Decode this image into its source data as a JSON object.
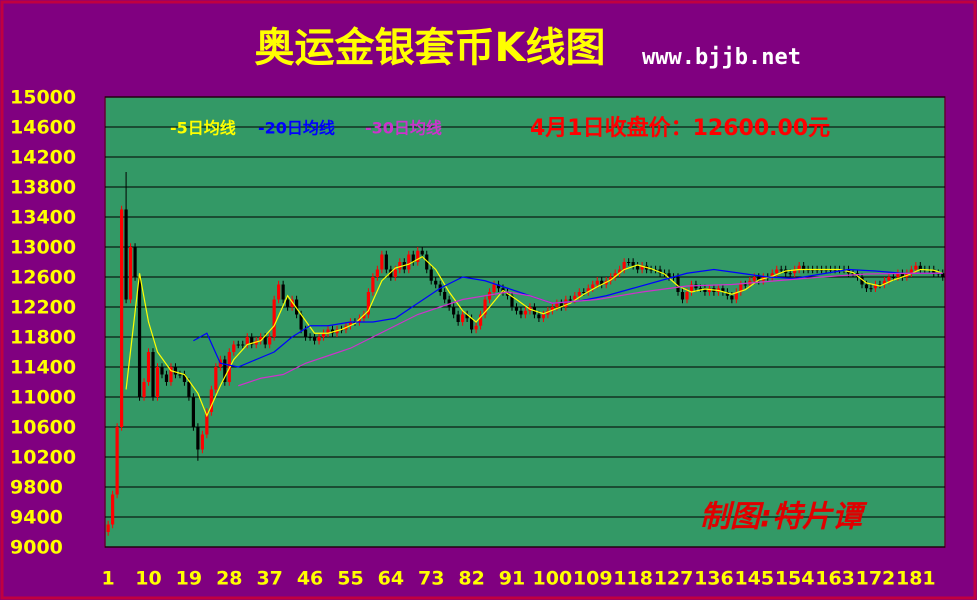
{
  "chart_data": {
    "type": "candlestick",
    "title": "奥运金银套币K线图",
    "subtitle": "www.bjjb.net",
    "annotation": "4月1日收盘价：12600.00元",
    "credit": "制图:特片谭",
    "up_color": "#ff0000",
    "down_color": "#000000",
    "x": [
      1,
      2,
      3,
      4,
      5,
      6,
      7,
      8,
      9,
      10,
      11,
      12,
      13,
      14,
      15,
      16,
      17,
      18,
      19,
      20,
      21,
      22,
      23,
      24,
      25,
      26,
      27,
      28,
      29,
      30,
      31,
      32,
      33,
      34,
      35,
      36,
      37,
      38,
      39,
      40,
      41,
      42,
      43,
      44,
      45,
      46,
      47,
      48,
      49,
      50,
      51,
      52,
      53,
      54,
      55,
      56,
      57,
      58,
      59,
      60,
      61,
      62,
      63,
      64,
      65,
      66,
      67,
      68,
      69,
      70,
      71,
      72,
      73,
      74,
      75,
      76,
      77,
      78,
      79,
      80,
      81,
      82,
      83,
      84,
      85,
      86,
      87,
      88,
      89,
      90,
      91,
      92,
      93,
      94,
      95,
      96,
      97,
      98,
      99,
      100,
      101,
      102,
      103,
      104,
      105,
      106,
      107,
      108,
      109,
      110,
      111,
      112,
      113,
      114,
      115,
      116,
      117,
      118,
      119,
      120,
      121,
      122,
      123,
      124,
      125,
      126,
      127,
      128,
      129,
      130,
      131,
      132,
      133,
      134,
      135,
      136,
      137,
      138,
      139,
      140,
      141,
      142,
      143,
      144,
      145,
      146,
      147,
      148,
      149,
      150,
      151,
      152,
      153,
      154,
      155,
      156,
      157,
      158,
      159,
      160,
      161,
      162,
      163,
      164,
      165,
      166,
      167,
      168,
      169,
      170,
      171,
      172,
      173,
      174,
      175,
      176,
      177,
      178,
      179,
      180,
      181,
      182,
      183,
      184,
      185,
      186,
      187
    ],
    "open": [
      9200,
      9300,
      9700,
      10600,
      13500,
      12300,
      13000,
      12600,
      11000,
      11200,
      11600,
      11000,
      11400,
      11300,
      11200,
      11400,
      11300,
      11300,
      11200,
      11000,
      10600,
      10300,
      10500,
      10800,
      11100,
      11400,
      11500,
      11200,
      11600,
      11700,
      11700,
      11700,
      11800,
      11700,
      11750,
      11800,
      11700,
      11800,
      12300,
      12500,
      12300,
      12200,
      12300,
      12100,
      11900,
      11800,
      11800,
      11750,
      11800,
      11850,
      11900,
      11850,
      11900,
      11900,
      11950,
      12000,
      12000,
      12050,
      12100,
      12400,
      12600,
      12700,
      12900,
      12700,
      12600,
      12700,
      12800,
      12700,
      12900,
      12800,
      12950,
      12900,
      12700,
      12550,
      12500,
      12400,
      12300,
      12200,
      12100,
      12000,
      12100,
      12050,
      11900,
      11950,
      12100,
      12300,
      12400,
      12500,
      12450,
      12400,
      12350,
      12200,
      12150,
      12100,
      12150,
      12200,
      12100,
      12050,
      12100,
      12150,
      12200,
      12250,
      12200,
      12300,
      12300,
      12350,
      12400,
      12400,
      12450,
      12500,
      12550,
      12500,
      12550,
      12600,
      12650,
      12700,
      12800,
      12800,
      12750,
      12700,
      12750,
      12700,
      12700,
      12700,
      12650,
      12650,
      12600,
      12600,
      12400,
      12300,
      12400,
      12500,
      12450,
      12450,
      12400,
      12450,
      12400,
      12450,
      12400,
      12350,
      12300,
      12400,
      12500,
      12500,
      12550,
      12600,
      12550,
      12600,
      12600,
      12650,
      12700,
      12700,
      12650,
      12650,
      12700,
      12750,
      12700,
      12700,
      12700,
      12700,
      12700,
      12700,
      12700,
      12700,
      12700,
      12700,
      12650,
      12650,
      12600,
      12500,
      12450,
      12450,
      12500,
      12500,
      12550,
      12600,
      12600,
      12650,
      12600,
      12650,
      12700,
      12750,
      12700,
      12700,
      12700,
      12650,
      12650
    ],
    "high": [
      9350,
      9750,
      10650,
      13550,
      14000,
      13050,
      13050,
      12650,
      11250,
      11650,
      11650,
      11450,
      11450,
      11350,
      11450,
      11450,
      11350,
      11350,
      11250,
      11050,
      10650,
      10550,
      10850,
      11150,
      11450,
      11550,
      11550,
      11650,
      11750,
      11750,
      11750,
      11850,
      11850,
      11800,
      11850,
      11850,
      11850,
      12350,
      12550,
      12550,
      12350,
      12350,
      12350,
      12150,
      11950,
      11850,
      11850,
      11850,
      11900,
      11950,
      11950,
      11950,
      11950,
      12000,
      12050,
      12050,
      12100,
      12150,
      12450,
      12650,
      12750,
      12950,
      12950,
      12750,
      12750,
      12850,
      12850,
      12950,
      12950,
      13000,
      13000,
      12950,
      12750,
      12600,
      12550,
      12450,
      12350,
      12250,
      12150,
      12150,
      12150,
      12100,
      12000,
      12150,
      12350,
      12450,
      12550,
      12550,
      12500,
      12450,
      12400,
      12250,
      12200,
      12200,
      12250,
      12250,
      12150,
      12150,
      12200,
      12250,
      12300,
      12300,
      12350,
      12350,
      12400,
      12450,
      12450,
      12500,
      12550,
      12600,
      12600,
      12600,
      12650,
      12700,
      12750,
      12850,
      12850,
      12850,
      12800,
      12800,
      12800,
      12750,
      12750,
      12750,
      12700,
      12700,
      12650,
      12650,
      12450,
      12450,
      12550,
      12550,
      12500,
      12500,
      12500,
      12500,
      12500,
      12500,
      12450,
      12400,
      12450,
      12550,
      12550,
      12600,
      12650,
      12650,
      12650,
      12650,
      12700,
      12750,
      12750,
      12750,
      12700,
      12750,
      12800,
      12800,
      12750,
      12750,
      12750,
      12750,
      12750,
      12750,
      12750,
      12750,
      12750,
      12750,
      12700,
      12700,
      12650,
      12550,
      12500,
      12550,
      12550,
      12600,
      12650,
      12650,
      12700,
      12700,
      12700,
      12750,
      12800,
      12800,
      12750,
      12750,
      12750,
      12700,
      12700
    ],
    "low": [
      9150,
      9250,
      9650,
      10550,
      12250,
      12250,
      12550,
      10950,
      10950,
      11150,
      10950,
      10950,
      11250,
      11150,
      11150,
      11250,
      11250,
      11150,
      10950,
      10550,
      10150,
      10250,
      10450,
      10750,
      11050,
      11350,
      11150,
      11150,
      11550,
      11650,
      11650,
      11650,
      11650,
      11650,
      11700,
      11650,
      11650,
      11750,
      12250,
      12250,
      12150,
      12150,
      12050,
      11850,
      11750,
      11750,
      11700,
      11700,
      11750,
      11800,
      11800,
      11800,
      11850,
      11850,
      11900,
      11950,
      11950,
      12000,
      12050,
      12350,
      12550,
      12650,
      12650,
      12550,
      12550,
      12650,
      12650,
      12650,
      12750,
      12750,
      12850,
      12650,
      12500,
      12450,
      12350,
      12250,
      12150,
      12050,
      11950,
      11950,
      12000,
      11850,
      11850,
      11900,
      12050,
      12250,
      12350,
      12400,
      12350,
      12300,
      12150,
      12100,
      12050,
      12050,
      12100,
      12050,
      12000,
      12000,
      12050,
      12100,
      12150,
      12150,
      12150,
      12250,
      12250,
      12300,
      12350,
      12350,
      12400,
      12450,
      12450,
      12450,
      12500,
      12550,
      12600,
      12650,
      12750,
      12700,
      12650,
      12650,
      12650,
      12650,
      12650,
      12600,
      12600,
      12550,
      12550,
      12350,
      12250,
      12250,
      12350,
      12400,
      12400,
      12350,
      12350,
      12350,
      12350,
      12350,
      12300,
      12250,
      12250,
      12350,
      12450,
      12450,
      12500,
      12500,
      12500,
      12550,
      12550,
      12600,
      12650,
      12600,
      12600,
      12600,
      12650,
      12650,
      12650,
      12650,
      12650,
      12650,
      12650,
      12650,
      12650,
      12650,
      12650,
      12600,
      12600,
      12550,
      12450,
      12400,
      12400,
      12400,
      12450,
      12450,
      12500,
      12550,
      12550,
      12550,
      12550,
      12600,
      12650,
      12650,
      12650,
      12650,
      12600,
      12600,
      12550
    ],
    "close": [
      9300,
      9700,
      10600,
      13500,
      12300,
      13000,
      12600,
      11000,
      11200,
      11600,
      11000,
      11400,
      11300,
      11200,
      11400,
      11300,
      11300,
      11200,
      11000,
      10600,
      10300,
      10500,
      10800,
      11100,
      11400,
      11500,
      11200,
      11600,
      11700,
      11700,
      11700,
      11800,
      11700,
      11750,
      11800,
      11700,
      11800,
      12300,
      12500,
      12300,
      12200,
      12300,
      12100,
      11900,
      11800,
      11800,
      11750,
      11800,
      11850,
      11900,
      11850,
      11900,
      11900,
      11950,
      12000,
      12000,
      12050,
      12100,
      12400,
      12600,
      12700,
      12900,
      12700,
      12600,
      12700,
      12800,
      12700,
      12900,
      12800,
      12950,
      12900,
      12700,
      12550,
      12500,
      12400,
      12300,
      12200,
      12100,
      12000,
      12100,
      12050,
      11900,
      11950,
      12100,
      12300,
      12400,
      12500,
      12450,
      12400,
      12350,
      12200,
      12150,
      12100,
      12150,
      12200,
      12100,
      12050,
      12100,
      12150,
      12200,
      12250,
      12200,
      12300,
      12300,
      12350,
      12400,
      12400,
      12450,
      12500,
      12550,
      12500,
      12550,
      12600,
      12650,
      12700,
      12800,
      12800,
      12750,
      12700,
      12750,
      12700,
      12700,
      12700,
      12650,
      12650,
      12600,
      12600,
      12400,
      12300,
      12400,
      12500,
      12450,
      12450,
      12400,
      12450,
      12400,
      12450,
      12400,
      12350,
      12300,
      12400,
      12500,
      12500,
      12550,
      12600,
      12550,
      12600,
      12600,
      12650,
      12700,
      12700,
      12650,
      12650,
      12700,
      12750,
      12700,
      12700,
      12700,
      12700,
      12700,
      12700,
      12700,
      12700,
      12700,
      12700,
      12650,
      12650,
      12600,
      12500,
      12450,
      12450,
      12500,
      12500,
      12550,
      12600,
      12600,
      12650,
      12600,
      12650,
      12700,
      12750,
      12700,
      12700,
      12700,
      12650,
      12650,
      12600
    ],
    "series": [
      {
        "name": "-5日均线",
        "color": "#ffff00",
        "x": [
          5,
          8,
          10,
          12,
          15,
          18,
          21,
          23,
          26,
          29,
          32,
          35,
          38,
          41,
          44,
          47,
          50,
          53,
          56,
          59,
          62,
          65,
          68,
          71,
          74,
          77,
          80,
          83,
          86,
          89,
          92,
          95,
          98,
          101,
          104,
          107,
          110,
          113,
          116,
          119,
          122,
          125,
          128,
          131,
          134,
          137,
          140,
          143,
          146,
          149,
          152,
          155,
          158,
          161,
          164,
          167,
          170,
          173,
          176,
          179,
          182,
          185,
          187
        ],
        "values": [
          11100,
          12650,
          12000,
          11600,
          11350,
          11300,
          11050,
          10750,
          11150,
          11500,
          11700,
          11750,
          11950,
          12350,
          12100,
          11850,
          11850,
          11900,
          11980,
          12150,
          12550,
          12720,
          12770,
          12870,
          12700,
          12400,
          12150,
          12000,
          12200,
          12420,
          12300,
          12170,
          12110,
          12180,
          12250,
          12370,
          12470,
          12560,
          12700,
          12760,
          12710,
          12640,
          12480,
          12400,
          12440,
          12420,
          12370,
          12430,
          12560,
          12610,
          12680,
          12700,
          12700,
          12700,
          12700,
          12660,
          12520,
          12480,
          12560,
          12620,
          12700,
          12690,
          12650
        ]
      },
      {
        "name": "-20日均线",
        "color": "#0000ff",
        "x": [
          20,
          23,
          26,
          30,
          34,
          38,
          42,
          46,
          50,
          55,
          60,
          65,
          70,
          75,
          80,
          85,
          90,
          95,
          100,
          106,
          112,
          118,
          124,
          130,
          136,
          142,
          148,
          154,
          160,
          166,
          172,
          178,
          184,
          187
        ],
        "values": [
          11750,
          11850,
          11450,
          11400,
          11500,
          11600,
          11800,
          11950,
          11950,
          12000,
          12000,
          12050,
          12250,
          12450,
          12600,
          12550,
          12450,
          12350,
          12250,
          12280,
          12350,
          12450,
          12550,
          12650,
          12700,
          12650,
          12600,
          12580,
          12640,
          12700,
          12680,
          12650,
          12650,
          12650
        ]
      },
      {
        "name": "-30日均线",
        "color": "#cc33cc",
        "x": [
          30,
          35,
          40,
          45,
          50,
          55,
          60,
          65,
          70,
          75,
          80,
          85,
          90,
          95,
          100,
          110,
          120,
          130,
          140,
          150,
          160,
          170,
          180,
          187
        ],
        "values": [
          11150,
          11250,
          11300,
          11450,
          11550,
          11650,
          11800,
          11950,
          12100,
          12200,
          12300,
          12350,
          12400,
          12350,
          12250,
          12300,
          12400,
          12480,
          12500,
          12550,
          12600,
          12640,
          12650,
          12650
        ]
      }
    ],
    "xlim": [
      0.3,
      187.5
    ],
    "xticks": [
      1,
      10,
      19,
      28,
      37,
      46,
      55,
      64,
      73,
      82,
      91,
      100,
      109,
      118,
      127,
      136,
      145,
      154,
      163,
      172,
      181
    ],
    "ylim": [
      9000,
      15000
    ],
    "yticks": [
      9000,
      9400,
      9800,
      10200,
      10600,
      11000,
      11400,
      11800,
      12200,
      12600,
      13000,
      13400,
      13800,
      14200,
      14600,
      15000
    ],
    "grid": true
  }
}
